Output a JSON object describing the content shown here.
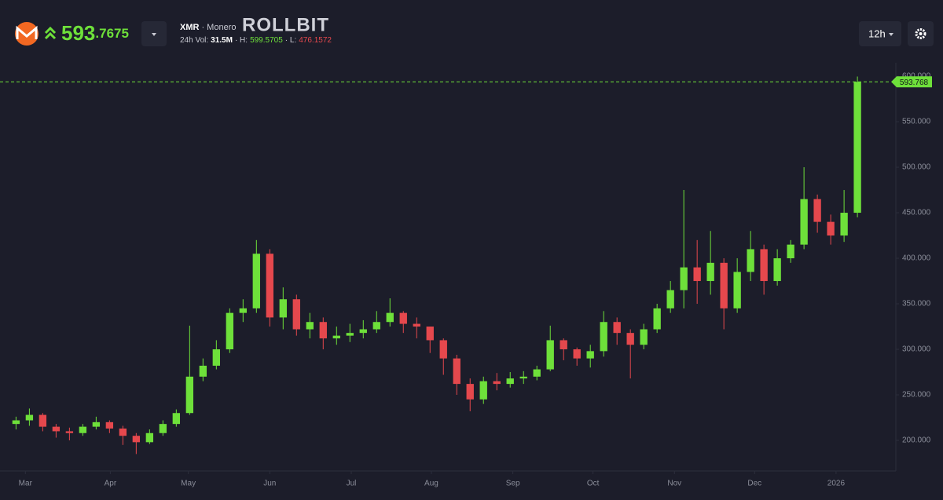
{
  "header": {
    "price_int": "593",
    "price_dec": ".7675",
    "pair": "XMR",
    "name": "· Monero",
    "brand": "ROLLBIT",
    "vol_label": "24h Vol:",
    "vol": "31.5M",
    "high_label": "· H:",
    "high": "599.5705",
    "low_label": "· L:",
    "low": "476.1572",
    "interval": "12h"
  },
  "chart_data": {
    "type": "candlestick",
    "categories": [
      null,
      null,
      null,
      null,
      null,
      null,
      null,
      null,
      null,
      null,
      null,
      null,
      null,
      null,
      null,
      null,
      null,
      null,
      null,
      null,
      null,
      null,
      null,
      null,
      null,
      null,
      null,
      null,
      null,
      null,
      null,
      null,
      null,
      null,
      null,
      null,
      null,
      null,
      null,
      null,
      null,
      null,
      null,
      null,
      null,
      null,
      null,
      null,
      null,
      null,
      null,
      null,
      null,
      null,
      null,
      null,
      null,
      null,
      null,
      null,
      null,
      null,
      null,
      null
    ],
    "open": [
      218,
      222,
      228,
      215,
      210,
      208,
      215,
      220,
      213,
      205,
      198,
      208,
      218,
      230,
      270,
      282,
      300,
      340,
      345,
      405,
      335,
      355,
      322,
      330,
      312,
      315,
      318,
      322,
      330,
      340,
      328,
      325,
      310,
      290,
      262,
      245,
      265,
      262,
      268,
      270,
      278,
      310,
      300,
      290,
      298,
      330,
      318,
      305,
      322,
      345,
      365,
      390,
      375,
      395,
      345,
      385,
      410,
      375,
      400,
      415,
      465,
      440,
      425,
      450
    ],
    "high": [
      226,
      235,
      230,
      218,
      214,
      218,
      226,
      222,
      216,
      208,
      212,
      222,
      234,
      326,
      290,
      310,
      345,
      355,
      420,
      410,
      368,
      360,
      340,
      335,
      325,
      328,
      332,
      342,
      356,
      342,
      335,
      325,
      312,
      294,
      268,
      270,
      274,
      275,
      276,
      282,
      326,
      312,
      302,
      305,
      342,
      335,
      322,
      328,
      350,
      375,
      475,
      420,
      430,
      400,
      400,
      430,
      415,
      410,
      420,
      500,
      470,
      448,
      475,
      599.57
    ],
    "low": [
      212,
      216,
      210,
      203,
      200,
      205,
      212,
      208,
      195,
      185,
      196,
      205,
      215,
      228,
      265,
      278,
      296,
      330,
      340,
      325,
      322,
      315,
      312,
      300,
      305,
      308,
      312,
      318,
      325,
      318,
      312,
      296,
      272,
      250,
      232,
      240,
      255,
      258,
      262,
      266,
      276,
      288,
      282,
      280,
      292,
      305,
      268,
      300,
      318,
      340,
      345,
      350,
      360,
      322,
      340,
      375,
      360,
      370,
      395,
      410,
      428,
      415,
      418,
      445
    ],
    "close": [
      222,
      228,
      215,
      210,
      208,
      215,
      220,
      213,
      205,
      198,
      208,
      218,
      230,
      270,
      282,
      300,
      340,
      345,
      405,
      335,
      355,
      322,
      330,
      312,
      315,
      318,
      322,
      330,
      340,
      328,
      325,
      310,
      290,
      262,
      245,
      265,
      262,
      268,
      270,
      278,
      310,
      300,
      290,
      298,
      330,
      318,
      305,
      322,
      345,
      365,
      390,
      375,
      395,
      345,
      385,
      410,
      375,
      400,
      415,
      465,
      440,
      425,
      450,
      593.768
    ],
    "up_color": "#6ee03a",
    "down_color": "#e5484d",
    "last_price": 593.768,
    "xlim": [
      -1.2,
      64.7
    ],
    "xticks": [
      {
        "value": 0.7,
        "label": "Mar"
      },
      {
        "value": 7.06,
        "label": "Apr"
      },
      {
        "value": 12.9,
        "label": "May"
      },
      {
        "value": 19.0,
        "label": "Jun"
      },
      {
        "value": 25.1,
        "label": "Jul"
      },
      {
        "value": 31.1,
        "label": "Aug"
      },
      {
        "value": 37.2,
        "label": "Sep"
      },
      {
        "value": 43.2,
        "label": "Oct"
      },
      {
        "value": 49.3,
        "label": "Nov"
      },
      {
        "value": 55.3,
        "label": "Dec"
      },
      {
        "value": 61.4,
        "label": "2026"
      }
    ],
    "ylim": [
      166.4,
      614.7
    ],
    "yticks": [
      {
        "value": 200,
        "label": "200.000"
      },
      {
        "value": 250,
        "label": "250.000"
      },
      {
        "value": 300,
        "label": "300.000"
      },
      {
        "value": 350,
        "label": "350.000"
      },
      {
        "value": 400,
        "label": "400.000"
      },
      {
        "value": 450,
        "label": "450.000"
      },
      {
        "value": 500,
        "label": "500.000"
      },
      {
        "value": 550,
        "label": "550.000"
      },
      {
        "value": 600,
        "label": "600.000"
      }
    ]
  }
}
